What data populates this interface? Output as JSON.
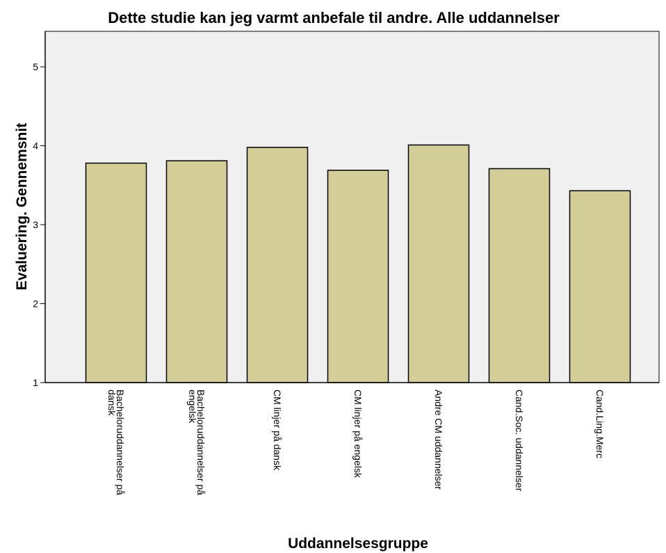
{
  "chart_data": {
    "type": "bar",
    "title": "Dette studie kan jeg varmt anbefale til andre. Alle uddannelser",
    "x_label": "Uddannelsesgruppe",
    "y_label": "Evaluering. Gennemsnit",
    "categories": [
      "Bacheloruddannelser på dansk",
      "Bacheloruddannelser på engelsk",
      "CM linjer på dansk",
      "CM linjer på engelsk",
      "Andre CM uddannelser",
      "Cand.Soc. uddannelser",
      "Cand.Ling.Merc"
    ],
    "values": [
      3.78,
      3.81,
      3.98,
      3.69,
      4.01,
      3.71,
      3.43
    ],
    "color": "#d3ce97",
    "ylim": [
      1,
      5.45
    ],
    "yticks": [
      1,
      2,
      3,
      4,
      5
    ],
    "grid": false
  }
}
